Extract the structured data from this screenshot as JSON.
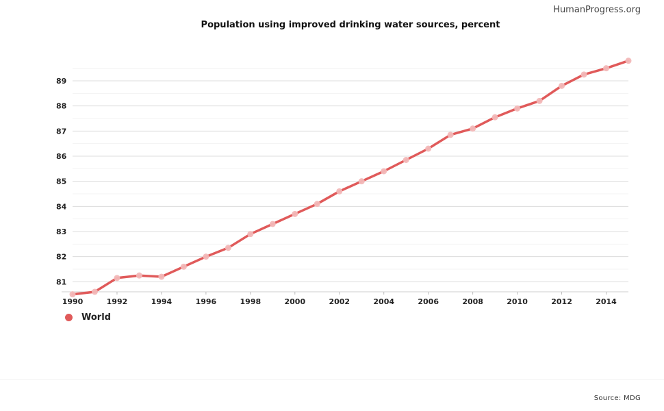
{
  "header": {
    "watermark": "HumanProgress.org",
    "title": "Population using improved drinking water sources, percent"
  },
  "footer": {
    "source": "Source: MDG"
  },
  "chart_data": {
    "type": "line",
    "title": "Population using improved drinking water sources, percent",
    "xlabel": "",
    "ylabel": "",
    "x": [
      1990,
      1991,
      1992,
      1993,
      1994,
      1995,
      1996,
      1997,
      1998,
      1999,
      2000,
      2001,
      2002,
      2003,
      2004,
      2005,
      2006,
      2007,
      2008,
      2009,
      2010,
      2011,
      2012,
      2013,
      2014,
      2015
    ],
    "x_ticks": [
      "1990",
      "1992",
      "1994",
      "1996",
      "1998",
      "2000",
      "2002",
      "2004",
      "2006",
      "2008",
      "2010",
      "2012",
      "2014"
    ],
    "y_ticks": [
      "81",
      "82",
      "83",
      "84",
      "85",
      "86",
      "87",
      "88",
      "89"
    ],
    "xlim": [
      1990,
      2015
    ],
    "ylim": [
      80.6,
      89.9
    ],
    "grid": true,
    "legend_position": "bottom-left",
    "series": [
      {
        "name": "World",
        "color": "#e05a5a",
        "values": [
          80.5,
          80.6,
          81.15,
          81.25,
          81.2,
          81.6,
          82.0,
          82.35,
          82.9,
          83.3,
          83.7,
          84.1,
          84.6,
          85.0,
          85.4,
          85.85,
          86.3,
          86.85,
          87.1,
          87.55,
          87.9,
          88.2,
          88.8,
          89.25,
          89.5,
          89.8
        ]
      }
    ]
  }
}
